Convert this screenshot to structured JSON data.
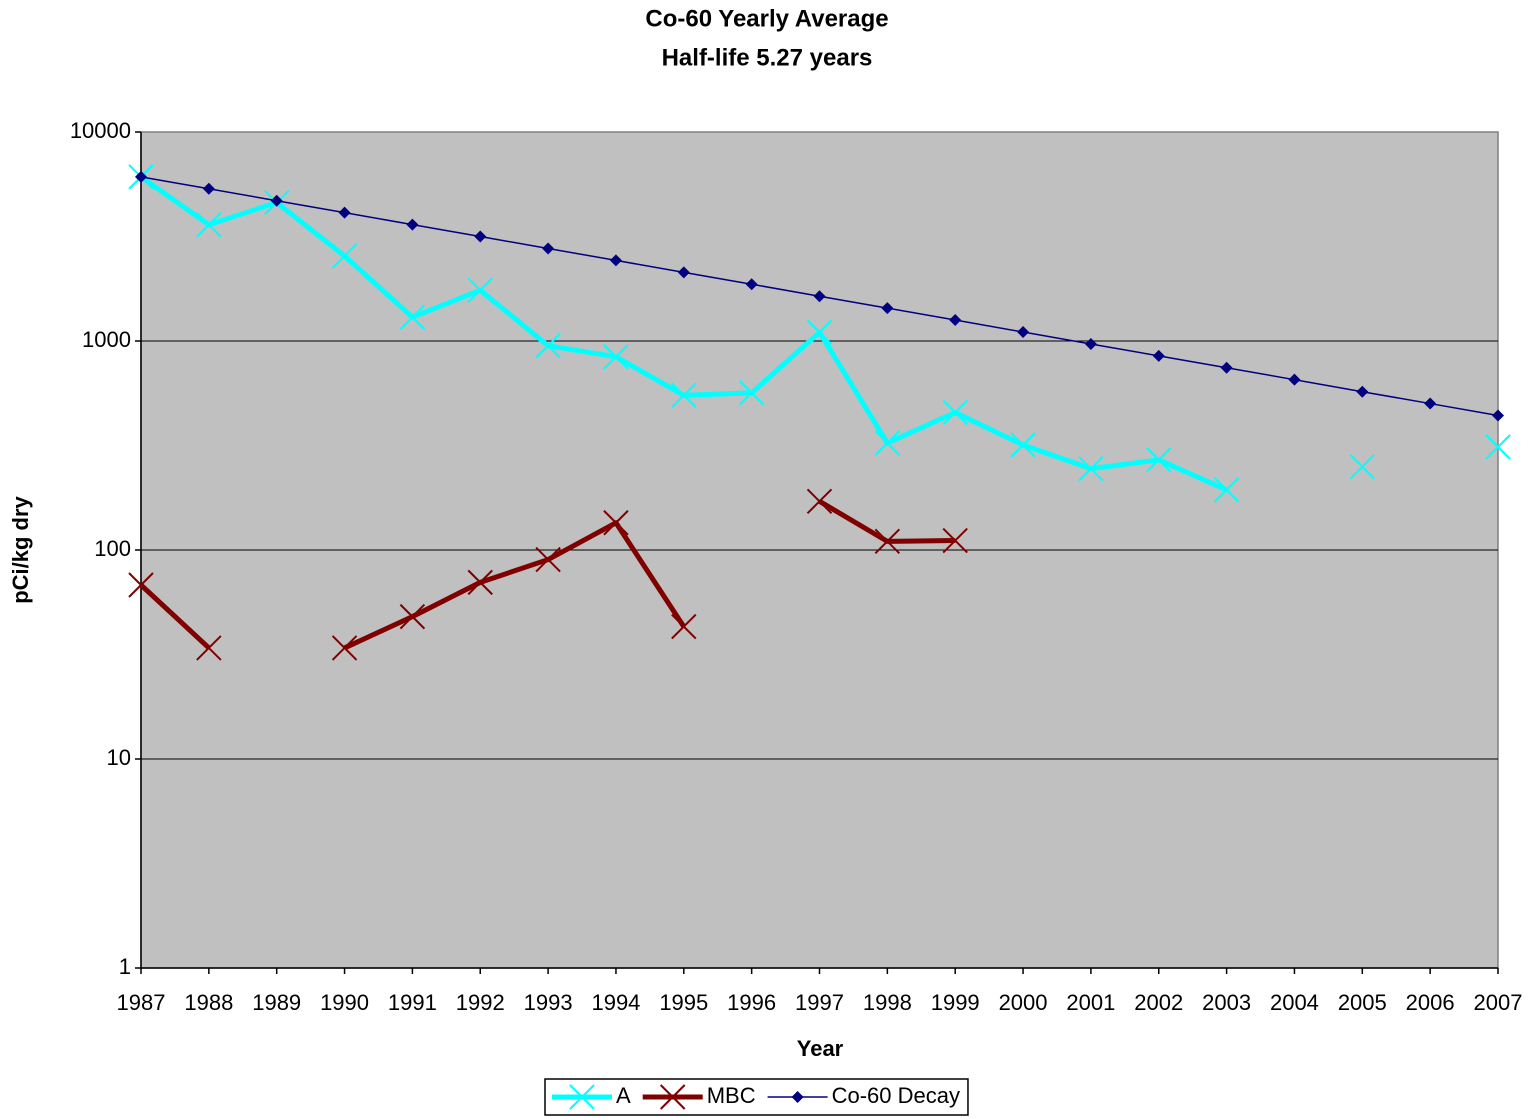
{
  "chart_data": {
    "type": "line",
    "title": "Co-60 Yearly Average",
    "subtitle": "Half-life 5.27 years",
    "x_label": "Year",
    "y_label": "pCi/kg dry",
    "categories": [
      "1987",
      "1988",
      "1989",
      "1990",
      "1991",
      "1992",
      "1993",
      "1994",
      "1995",
      "1996",
      "1997",
      "1998",
      "1999",
      "2000",
      "2001",
      "2002",
      "2003",
      "2004",
      "2005",
      "2006",
      "2007"
    ],
    "series": [
      {
        "name": "A",
        "color": "#00ffff",
        "marker": "x",
        "line_width": 5,
        "values": [
          6100,
          3600,
          4600,
          2550,
          1300,
          1750,
          950,
          840,
          550,
          565,
          1100,
          325,
          455,
          318,
          245,
          270,
          194,
          null,
          250,
          null,
          311
        ]
      },
      {
        "name": "MBC",
        "color": "#800000",
        "marker": "x",
        "line_width": 5,
        "values": [
          68,
          34,
          null,
          34,
          48,
          70,
          90,
          135,
          43,
          null,
          171,
          110,
          111,
          null,
          null,
          null,
          null,
          null,
          null,
          null,
          null
        ]
      },
      {
        "name": "Co-60 Decay",
        "color": "#000080",
        "marker": "diamond",
        "line_width": 1.5,
        "values": [
          6100,
          5349,
          4690,
          4112,
          3606,
          3161,
          2772,
          2430,
          2131,
          1869,
          1638,
          1437,
          1260,
          1104,
          968,
          849,
          745,
          653,
          572,
          502,
          440
        ]
      }
    ],
    "ylim": [
      1,
      10000
    ],
    "yticks": [
      1,
      10,
      100,
      1000,
      10000
    ],
    "log_scale": true,
    "grid": true,
    "plot_background": "#c0c0c0",
    "legend": "bottom"
  }
}
